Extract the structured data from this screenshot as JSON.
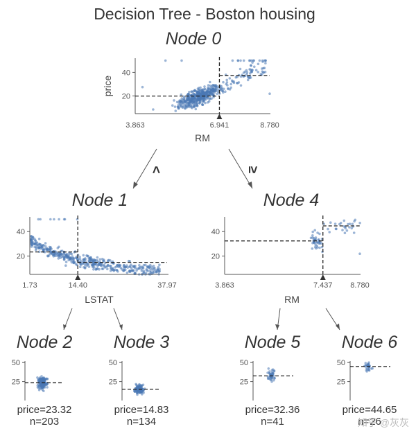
{
  "title": "Decision Tree - Boston housing",
  "watermark": "知乎 @灰灰",
  "root": {
    "label": "Node 0",
    "feature": "RM",
    "threshold": 6.941,
    "threshold_label": "6.941",
    "xmin": 3.863,
    "xmax": 8.78,
    "xmin_label": "3.863",
    "xmax_label": "8.780",
    "ylabel": "price",
    "ymin": 5,
    "ymax": 52,
    "yticks": [
      20,
      40
    ],
    "left_mean": 19.9,
    "right_mean": 37.2
  },
  "node1": {
    "label": "Node 1",
    "feature": "LSTAT",
    "threshold": 14.4,
    "threshold_label": "14.40",
    "xmin": 1.73,
    "xmax": 37.97,
    "xmin_label": "1.73",
    "xmax_label": "37.97",
    "ymin": 5,
    "ymax": 52,
    "yticks": [
      20,
      40
    ],
    "left_mean": 23.32,
    "right_mean": 14.83
  },
  "node4": {
    "label": "Node 4",
    "feature": "RM",
    "threshold": 7.437,
    "threshold_label": "7.437",
    "xmin": 3.863,
    "xmax": 8.78,
    "xmin_label": "3.863",
    "xmax_label": "8.780",
    "ymin": 5,
    "ymax": 52,
    "yticks": [
      20,
      40
    ],
    "left_mean": 32.36,
    "right_mean": 44.65
  },
  "edges": {
    "left_op": "<",
    "right_op": "≥"
  },
  "leaves": [
    {
      "label": "Node 2",
      "price_text": "price=23.32",
      "n_text": "n=203",
      "mean": 23.32,
      "n": 203,
      "spread": 5.5
    },
    {
      "label": "Node 3",
      "price_text": "price=14.83",
      "n_text": "n=134",
      "mean": 14.83,
      "n": 134,
      "spread": 4.0
    },
    {
      "label": "Node 5",
      "price_text": "price=32.36",
      "n_text": "n=41",
      "mean": 32.36,
      "n": 41,
      "spread": 5.5
    },
    {
      "label": "Node 6",
      "price_text": "price=44.65",
      "n_text": "n=26",
      "mean": 44.65,
      "n": 26,
      "spread": 5.0
    }
  ],
  "leaf_axis": {
    "ymin": 0,
    "ymax": 52,
    "yticks": [
      25,
      50
    ]
  }
}
